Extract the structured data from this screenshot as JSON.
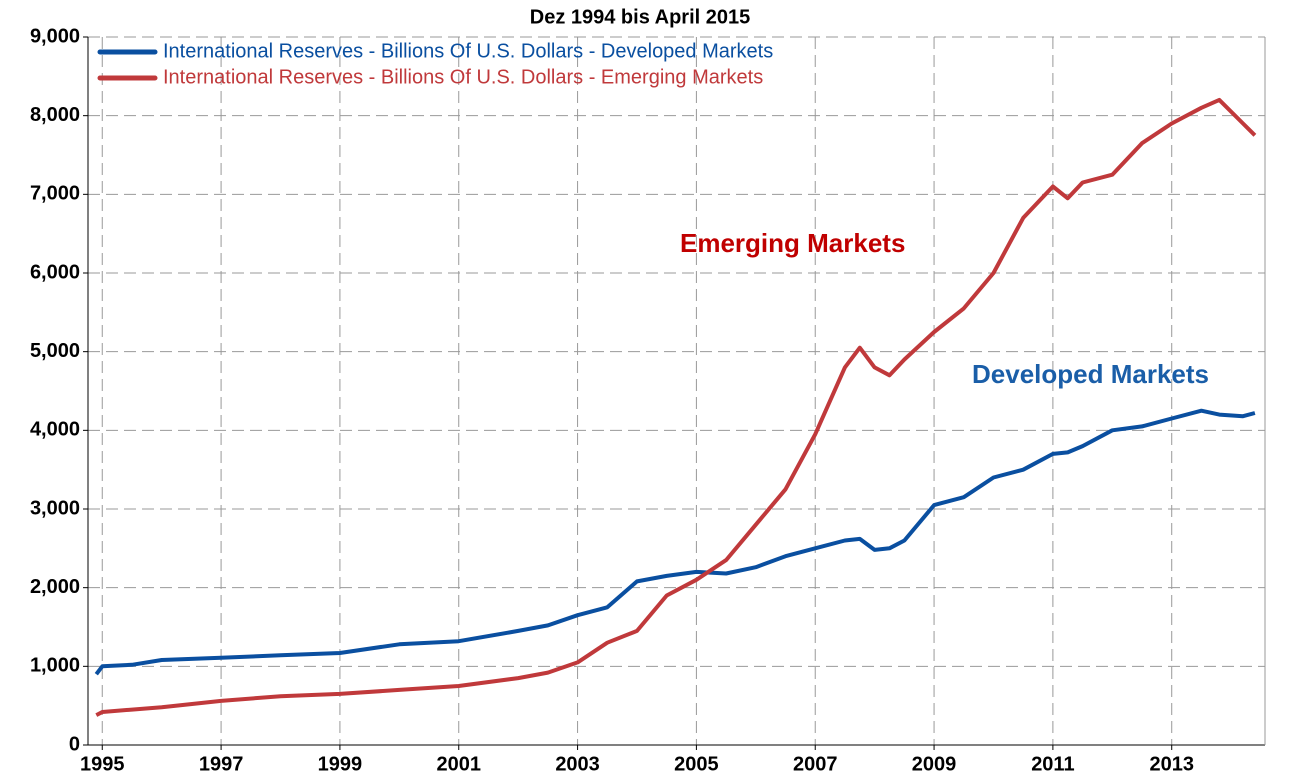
{
  "chart_data": {
    "type": "line",
    "title": "Dez 1994 bis April 2015",
    "x": [
      1994.9,
      1995,
      1995.5,
      1996,
      1997,
      1998,
      1999,
      2000,
      2001,
      2002,
      2002.5,
      2003,
      2003.5,
      2004,
      2004.5,
      2005,
      2005.5,
      2006,
      2006.5,
      2007,
      2007.5,
      2007.75,
      2008,
      2008.25,
      2008.5,
      2009,
      2009.5,
      2010,
      2010.5,
      2011,
      2011.25,
      2011.5,
      2012,
      2012.5,
      2013,
      2013.5,
      2013.8,
      2014.2,
      2014.4
    ],
    "series": [
      {
        "name": "International Reserves - Billions Of U.S. Dollars - Developed Markets",
        "color": "#0a4fa0",
        "values": [
          900,
          1000,
          1020,
          1080,
          1110,
          1140,
          1170,
          1280,
          1320,
          1450,
          1520,
          1650,
          1750,
          2080,
          2150,
          2200,
          2180,
          2260,
          2400,
          2500,
          2600,
          2620,
          2480,
          2500,
          2600,
          3050,
          3150,
          3400,
          3500,
          3700,
          3720,
          3800,
          4000,
          4050,
          4150,
          4250,
          4200,
          4180,
          4220
        ]
      },
      {
        "name": "International Reserves - Billions Of U.S. Dollars - Emerging Markets",
        "color": "#c0393b",
        "values": [
          380,
          420,
          450,
          480,
          560,
          620,
          650,
          700,
          750,
          850,
          920,
          1050,
          1300,
          1450,
          1900,
          2100,
          2350,
          2800,
          3250,
          3950,
          4800,
          5050,
          4800,
          4700,
          4900,
          5250,
          5550,
          6000,
          6700,
          7100,
          6950,
          7150,
          7250,
          7650,
          7900,
          8100,
          8200,
          7900,
          7750
        ]
      }
    ],
    "annotations": [
      {
        "text": "Emerging Markets",
        "color": "#c00000"
      },
      {
        "text": "Developed Markets",
        "color": "#1a5ea8"
      }
    ],
    "xlim": [
      1994.76,
      2014.57
    ],
    "xticks": [
      1995,
      1997,
      1999,
      2001,
      2003,
      2005,
      2007,
      2009,
      2011,
      2013
    ],
    "ylim": [
      0,
      9000
    ],
    "yticks": [
      0,
      {
        "value": 1000,
        "label": "1,000"
      },
      {
        "value": 2000,
        "label": "2,000"
      },
      {
        "value": 3000,
        "label": "3,000"
      },
      {
        "value": 4000,
        "label": "4,000"
      },
      {
        "value": 5000,
        "label": "5,000"
      },
      {
        "value": 6000,
        "label": "6,000"
      },
      {
        "value": 7000,
        "label": "7,000"
      },
      {
        "value": 8000,
        "label": "8,000"
      },
      {
        "value": 9000,
        "label": "9,000"
      }
    ],
    "grid": true
  }
}
